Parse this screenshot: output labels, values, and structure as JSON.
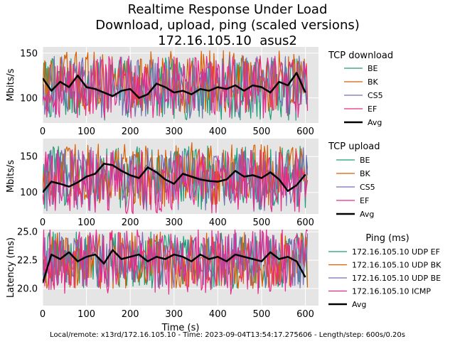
{
  "figure": {
    "title_lines": [
      "Realtime Response Under Load",
      "Download, upload, ping (scaled versions)",
      "172.16.105.10  asus2"
    ],
    "footer": "Local/remote: x13rd/172.16.105.10 - Time: 2023-09-04T13:54:17.275606 - Length/step: 600s/0.20s",
    "xlabel": "Time (s)",
    "background_color": "#e5e5e5",
    "colors": {
      "green": "#1b9e77",
      "orange": "#d95f02",
      "purple": "#7570b3",
      "pink": "#e7298a",
      "avg": "#000000"
    }
  },
  "chart_data": [
    {
      "type": "line",
      "ylabel": "Mbits/s",
      "legend_title": "TCP download",
      "legend_position": "right",
      "xlim": [
        0,
        630
      ],
      "ylim": [
        72,
        157
      ],
      "xticks": [
        0,
        100,
        200,
        300,
        400,
        500,
        600
      ],
      "yticks": [
        100,
        150
      ],
      "series": [
        {
          "name": "BE",
          "color": "#1b9e77",
          "approx_mean": 110,
          "approx_spread": 35
        },
        {
          "name": "BK",
          "color": "#d95f02",
          "approx_mean": 118,
          "approx_spread": 35
        },
        {
          "name": "CS5",
          "color": "#7570b3",
          "approx_mean": 112,
          "approx_spread": 35
        },
        {
          "name": "EF",
          "color": "#e7298a",
          "approx_mean": 112,
          "approx_spread": 35
        },
        {
          "name": "Avg",
          "color": "#000000",
          "line_width": 2.5,
          "x": [
            0,
            20,
            40,
            60,
            80,
            100,
            120,
            140,
            160,
            180,
            200,
            220,
            240,
            260,
            280,
            300,
            320,
            340,
            360,
            380,
            400,
            420,
            440,
            460,
            480,
            500,
            520,
            540,
            560,
            580,
            600
          ],
          "values": [
            122,
            108,
            118,
            112,
            125,
            112,
            110,
            106,
            102,
            108,
            110,
            100,
            104,
            116,
            112,
            106,
            108,
            104,
            110,
            108,
            112,
            110,
            114,
            108,
            114,
            112,
            106,
            118,
            114,
            128,
            106
          ]
        }
      ]
    },
    {
      "type": "line",
      "ylabel": "Mbits/s",
      "legend_title": "TCP upload",
      "legend_position": "right",
      "xlim": [
        0,
        630
      ],
      "ylim": [
        70,
        175
      ],
      "xticks": [
        0,
        100,
        200,
        300,
        400,
        500,
        600
      ],
      "yticks": [
        100,
        150
      ],
      "series": [
        {
          "name": "BE",
          "color": "#1b9e77",
          "approx_mean": 120,
          "approx_spread": 45
        },
        {
          "name": "BK",
          "color": "#d95f02",
          "approx_mean": 125,
          "approx_spread": 45
        },
        {
          "name": "CS5",
          "color": "#7570b3",
          "approx_mean": 118,
          "approx_spread": 45
        },
        {
          "name": "EF",
          "color": "#e7298a",
          "approx_mean": 115,
          "approx_spread": 45
        },
        {
          "name": "Avg",
          "color": "#000000",
          "line_width": 2.5,
          "x": [
            0,
            20,
            40,
            60,
            80,
            100,
            120,
            140,
            160,
            180,
            200,
            220,
            240,
            260,
            280,
            300,
            320,
            340,
            360,
            380,
            400,
            420,
            440,
            460,
            480,
            500,
            520,
            540,
            560,
            580,
            600
          ],
          "values": [
            100,
            115,
            112,
            108,
            114,
            122,
            126,
            140,
            138,
            130,
            124,
            120,
            135,
            128,
            118,
            112,
            126,
            122,
            118,
            116,
            115,
            118,
            130,
            122,
            124,
            120,
            128,
            118,
            102,
            110,
            125
          ]
        }
      ]
    },
    {
      "type": "line",
      "ylabel": "Latency (ms)",
      "legend_title": "Ping (ms)",
      "legend_position": "right",
      "xlim": [
        0,
        630
      ],
      "ylim": [
        18.5,
        25.2
      ],
      "xticks": [
        0,
        100,
        200,
        300,
        400,
        500,
        600
      ],
      "yticks": [
        20.0,
        22.5,
        25.0
      ],
      "ytick_labels": [
        "20.0",
        "22.5",
        "25.0"
      ],
      "series": [
        {
          "name": "172.16.105.10 UDP EF",
          "color": "#1b9e77",
          "approx_mean": 22.5,
          "approx_spread": 2.5
        },
        {
          "name": "172.16.105.10 UDP BK",
          "color": "#d95f02",
          "approx_mean": 22.5,
          "approx_spread": 2.5
        },
        {
          "name": "172.16.105.10 UDP BE",
          "color": "#7570b3",
          "approx_mean": 22.5,
          "approx_spread": 2.5
        },
        {
          "name": "172.16.105.10 ICMP",
          "color": "#e7298a",
          "approx_mean": 22.5,
          "approx_spread": 3.0
        },
        {
          "name": "Avg",
          "color": "#000000",
          "line_width": 2.5,
          "x": [
            0,
            20,
            40,
            60,
            80,
            100,
            120,
            140,
            160,
            180,
            200,
            220,
            240,
            260,
            280,
            300,
            320,
            340,
            360,
            380,
            400,
            420,
            440,
            460,
            480,
            500,
            520,
            540,
            560,
            580,
            600
          ],
          "values": [
            20.5,
            23.0,
            22.6,
            23.2,
            22.4,
            22.8,
            23.0,
            22.2,
            23.4,
            22.6,
            22.8,
            23.0,
            22.4,
            22.8,
            22.6,
            23.0,
            22.8,
            22.4,
            23.0,
            22.6,
            22.8,
            22.4,
            23.0,
            22.8,
            22.6,
            22.4,
            23.2,
            22.6,
            22.8,
            22.4,
            21.0
          ]
        }
      ]
    }
  ]
}
